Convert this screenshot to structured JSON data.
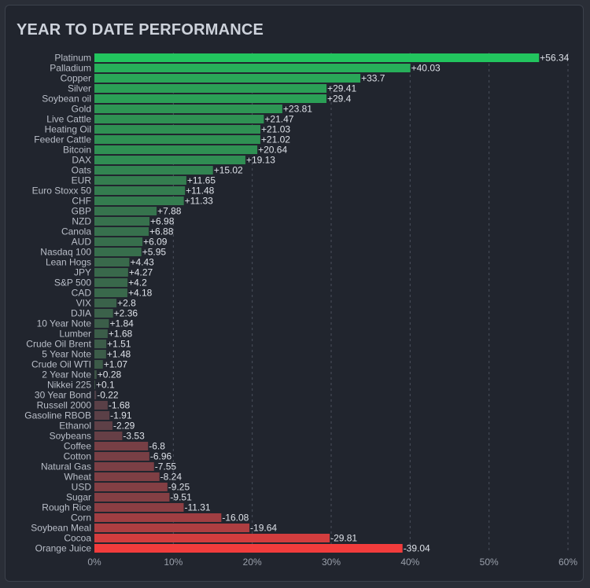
{
  "chart_data": {
    "type": "bar",
    "orientation": "horizontal",
    "title": "YEAR TO DATE PERFORMANCE",
    "categories": [
      "Platinum",
      "Palladium",
      "Copper",
      "Silver",
      "Soybean oil",
      "Gold",
      "Live Cattle",
      "Heating Oil",
      "Feeder Cattle",
      "Bitcoin",
      "DAX",
      "Oats",
      "EUR",
      "Euro Stoxx 50",
      "CHF",
      "GBP",
      "NZD",
      "Canola",
      "AUD",
      "Nasdaq 100",
      "Lean Hogs",
      "JPY",
      "S&P 500",
      "CAD",
      "VIX",
      "DJIA",
      "10 Year Note",
      "Lumber",
      "Crude Oil Brent",
      "5 Year Note",
      "Crude Oil WTI",
      "2 Year Note",
      "Nikkei 225",
      "30 Year Bond",
      "Russell 2000",
      "Gasoline RBOB",
      "Ethanol",
      "Soybeans",
      "Coffee",
      "Cotton",
      "Natural Gas",
      "Wheat",
      "USD",
      "Sugar",
      "Rough Rice",
      "Corn",
      "Soybean Meal",
      "Cocoa",
      "Orange Juice"
    ],
    "values": [
      56.34,
      40.03,
      33.7,
      29.41,
      29.4,
      23.81,
      21.47,
      21.03,
      21.02,
      20.64,
      19.13,
      15.02,
      11.65,
      11.48,
      11.33,
      7.88,
      6.98,
      6.88,
      6.09,
      5.95,
      4.43,
      4.27,
      4.2,
      4.18,
      2.8,
      2.36,
      1.84,
      1.68,
      1.51,
      1.48,
      1.07,
      0.28,
      0.1,
      -0.22,
      -1.68,
      -1.91,
      -2.29,
      -3.53,
      -6.8,
      -6.96,
      -7.55,
      -8.24,
      -9.25,
      -9.51,
      -11.31,
      -16.08,
      -19.64,
      -29.81,
      -39.04
    ],
    "value_labels": [
      "+56.34",
      "+40.03",
      "+33.7",
      "+29.41",
      "+29.4",
      "+23.81",
      "+21.47",
      "+21.03",
      "+21.02",
      "+20.64",
      "+19.13",
      "+15.02",
      "+11.65",
      "+11.48",
      "+11.33",
      "+7.88",
      "+6.98",
      "+6.88",
      "+6.09",
      "+5.95",
      "+4.43",
      "+4.27",
      "+4.2",
      "+4.18",
      "+2.8",
      "+2.36",
      "+1.84",
      "+1.68",
      "+1.51",
      "+1.48",
      "+1.07",
      "+0.28",
      "+0.1",
      "-0.22",
      "-1.68",
      "-1.91",
      "-2.29",
      "-3.53",
      "-6.8",
      "-6.96",
      "-7.55",
      "-8.24",
      "-9.25",
      "-9.51",
      "-11.31",
      "-16.08",
      "-19.64",
      "-29.81",
      "-39.04"
    ],
    "x_ticks": [
      "0%",
      "10%",
      "20%",
      "30%",
      "40%",
      "50%",
      "60%"
    ],
    "xlim": [
      0,
      60
    ],
    "bar_length": "absolute value",
    "grid": "vertical, dashed",
    "legend": "none",
    "colors": {
      "positive_strong": "#22c55e",
      "positive_weak": "#3f4f46",
      "negative_weak": "#4a4048",
      "negative_strong": "#f23c3c",
      "background": "#21252e"
    }
  }
}
